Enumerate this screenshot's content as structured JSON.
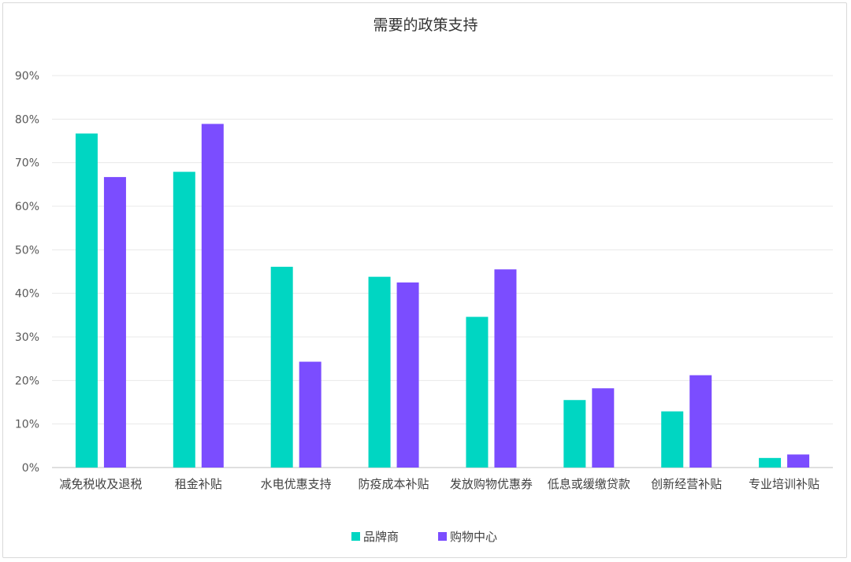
{
  "chart_data": {
    "type": "bar",
    "title": "需要的政策支持",
    "categories": [
      "减免税收及退税",
      "租金补贴",
      "水电优惠支持",
      "防疫成本补贴",
      "发放购物优惠券",
      "低息或缓缴贷款",
      "创新经营补贴",
      "专业培训补贴"
    ],
    "series": [
      {
        "name": "品牌商",
        "color": "#00d6c2",
        "values": [
          0.767,
          0.679,
          0.461,
          0.438,
          0.346,
          0.155,
          0.129,
          0.022
        ]
      },
      {
        "name": "购物中心",
        "color": "#7b4dff",
        "values": [
          0.667,
          0.789,
          0.243,
          0.425,
          0.455,
          0.182,
          0.212,
          0.03
        ]
      }
    ],
    "yticks": [
      "0%",
      "10%",
      "20%",
      "30%",
      "40%",
      "50%",
      "60%",
      "70%",
      "80%",
      "90%"
    ],
    "ylim": [
      0,
      0.9
    ],
    "grid": true,
    "legend_position": "bottom-center"
  }
}
